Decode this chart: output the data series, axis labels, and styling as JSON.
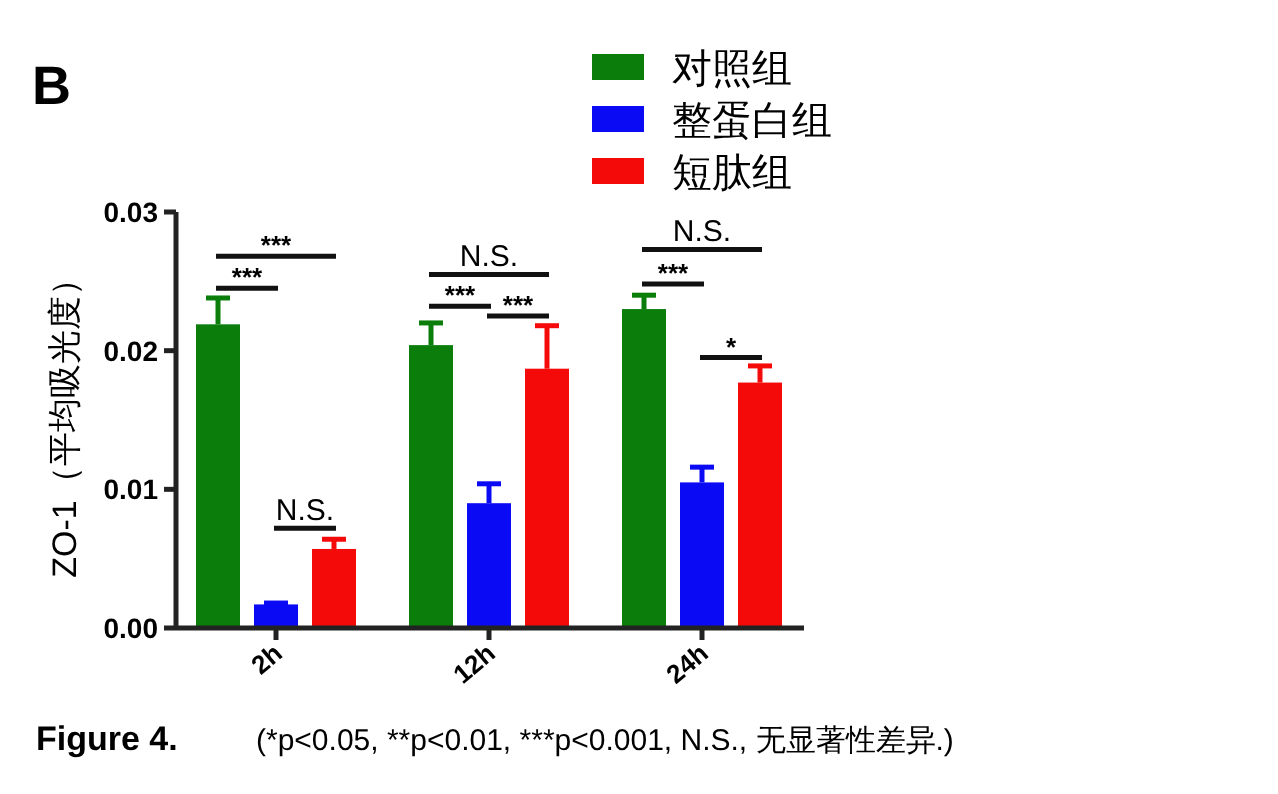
{
  "chart_data": {
    "type": "bar",
    "title": "B",
    "ylabel": "ZO-1（平均吸光度）",
    "categories": [
      "2h",
      "12h",
      "24h"
    ],
    "series": [
      {
        "name": "对照组",
        "color": "#0a7d0a",
        "values": [
          0.0219,
          0.0204,
          0.023
        ],
        "errors": [
          [
            0.0219,
            0.0238
          ],
          [
            0.0204,
            0.022
          ],
          [
            0.023,
            0.024
          ]
        ]
      },
      {
        "name": "整蛋白组",
        "color": "#0a0af5",
        "values": [
          0.0017,
          0.009,
          0.0105
        ],
        "errors": [
          [
            0.0017,
            0.0018
          ],
          [
            0.009,
            0.0104
          ],
          [
            0.0105,
            0.0116
          ]
        ]
      },
      {
        "name": "短肽组",
        "color": "#f50a0a",
        "values": [
          0.0057,
          0.0187,
          0.0177
        ],
        "errors": [
          [
            0.0057,
            0.0064
          ],
          [
            0.0187,
            0.0218
          ],
          [
            0.0177,
            0.0189
          ]
        ]
      }
    ],
    "ylim": [
      0,
      0.03
    ],
    "yticks": [
      {
        "value": 0,
        "label": "0.00"
      },
      {
        "value": 0.01,
        "label": "0.01"
      },
      {
        "value": 0.02,
        "label": "0.02"
      },
      {
        "value": 0.03,
        "label": "0.03"
      }
    ],
    "legend": "top",
    "annotations": [
      "***",
      "***",
      "N.S.",
      "N.S.",
      "***",
      "***",
      "N.S.",
      "***",
      "*",
      "Figure 4.",
      "(*p<0.05, **p<0.01, ***p<0.001, N.S., 无显著性差异.)"
    ]
  }
}
